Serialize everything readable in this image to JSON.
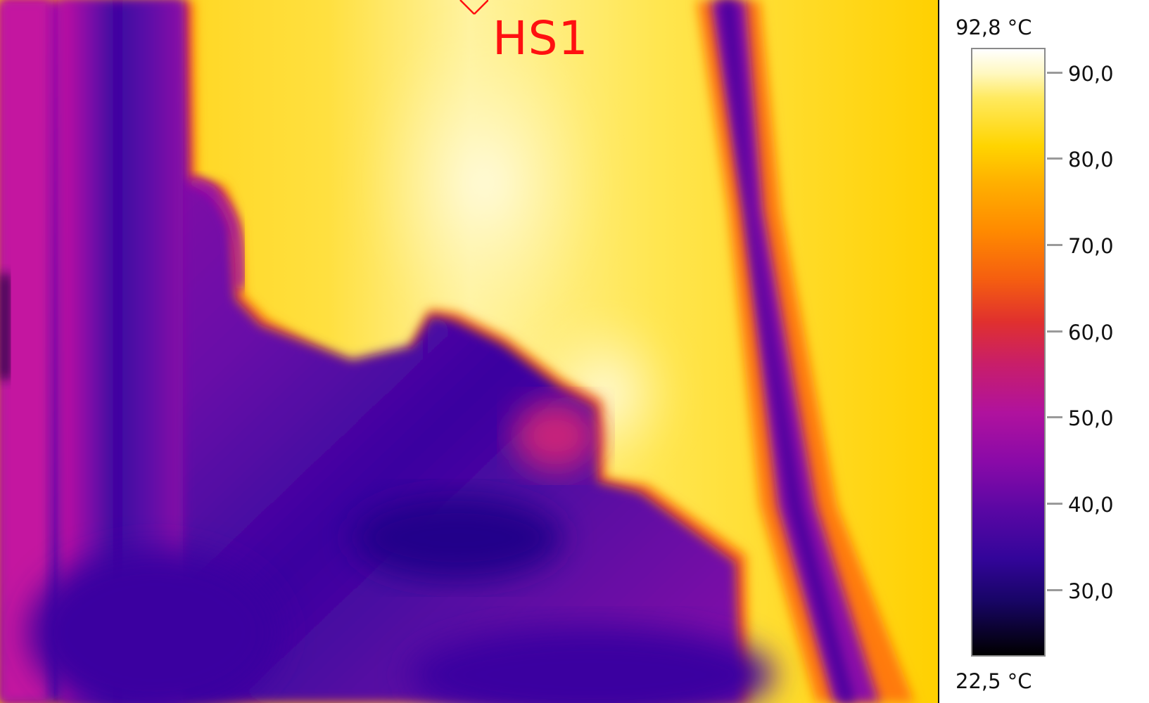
{
  "hotspot": {
    "label": "HS1",
    "icon": "crosshair-x-icon",
    "color": "#ff1010"
  },
  "scale": {
    "max_label": "92,8 °C",
    "min_label": "22,5 °C",
    "max_value": 92.8,
    "min_value": 22.5,
    "palette": "iron",
    "ticks": [
      "90,0",
      "80,0",
      "70,0",
      "60,0",
      "50,0",
      "40,0",
      "30,0"
    ]
  }
}
